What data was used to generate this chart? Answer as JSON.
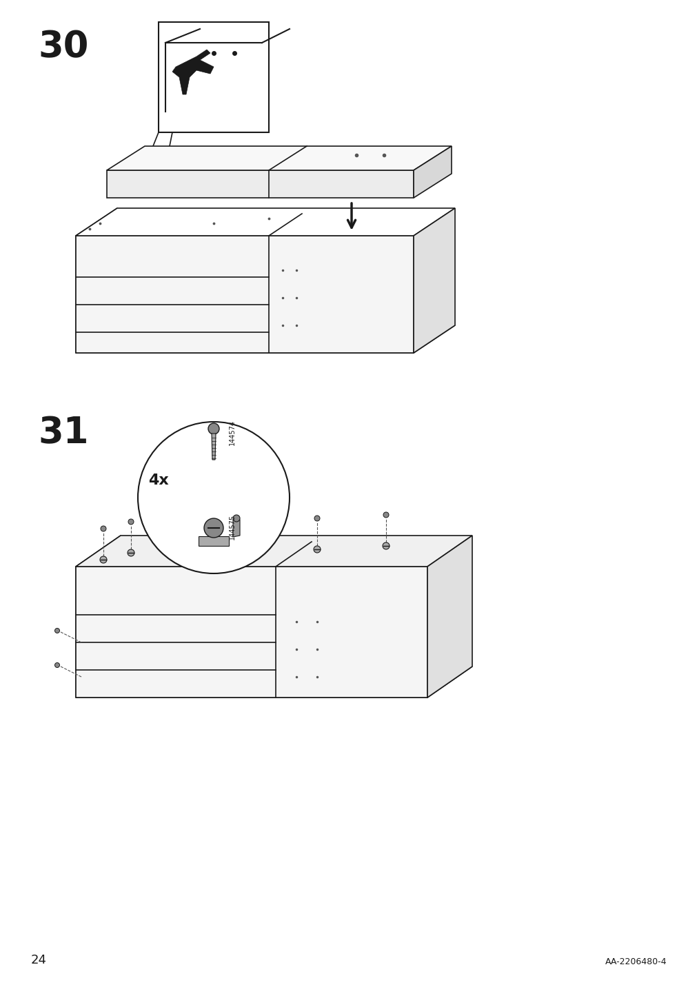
{
  "background_color": "#ffffff",
  "page_number": "24",
  "doc_code": "AA-2206480-4",
  "step30_label": "30",
  "step31_label": "31",
  "step31_quantity": "4x",
  "part_code1": "144574",
  "part_code2": "144575",
  "line_color": "#1a1a1a",
  "fill_color_light": "#f0f0f0",
  "fill_color_medium": "#d8d8d8",
  "fill_color_dark": "#b0b0b0",
  "arrow_color": "#1a1a1a",
  "text_color": "#1a1a1a"
}
